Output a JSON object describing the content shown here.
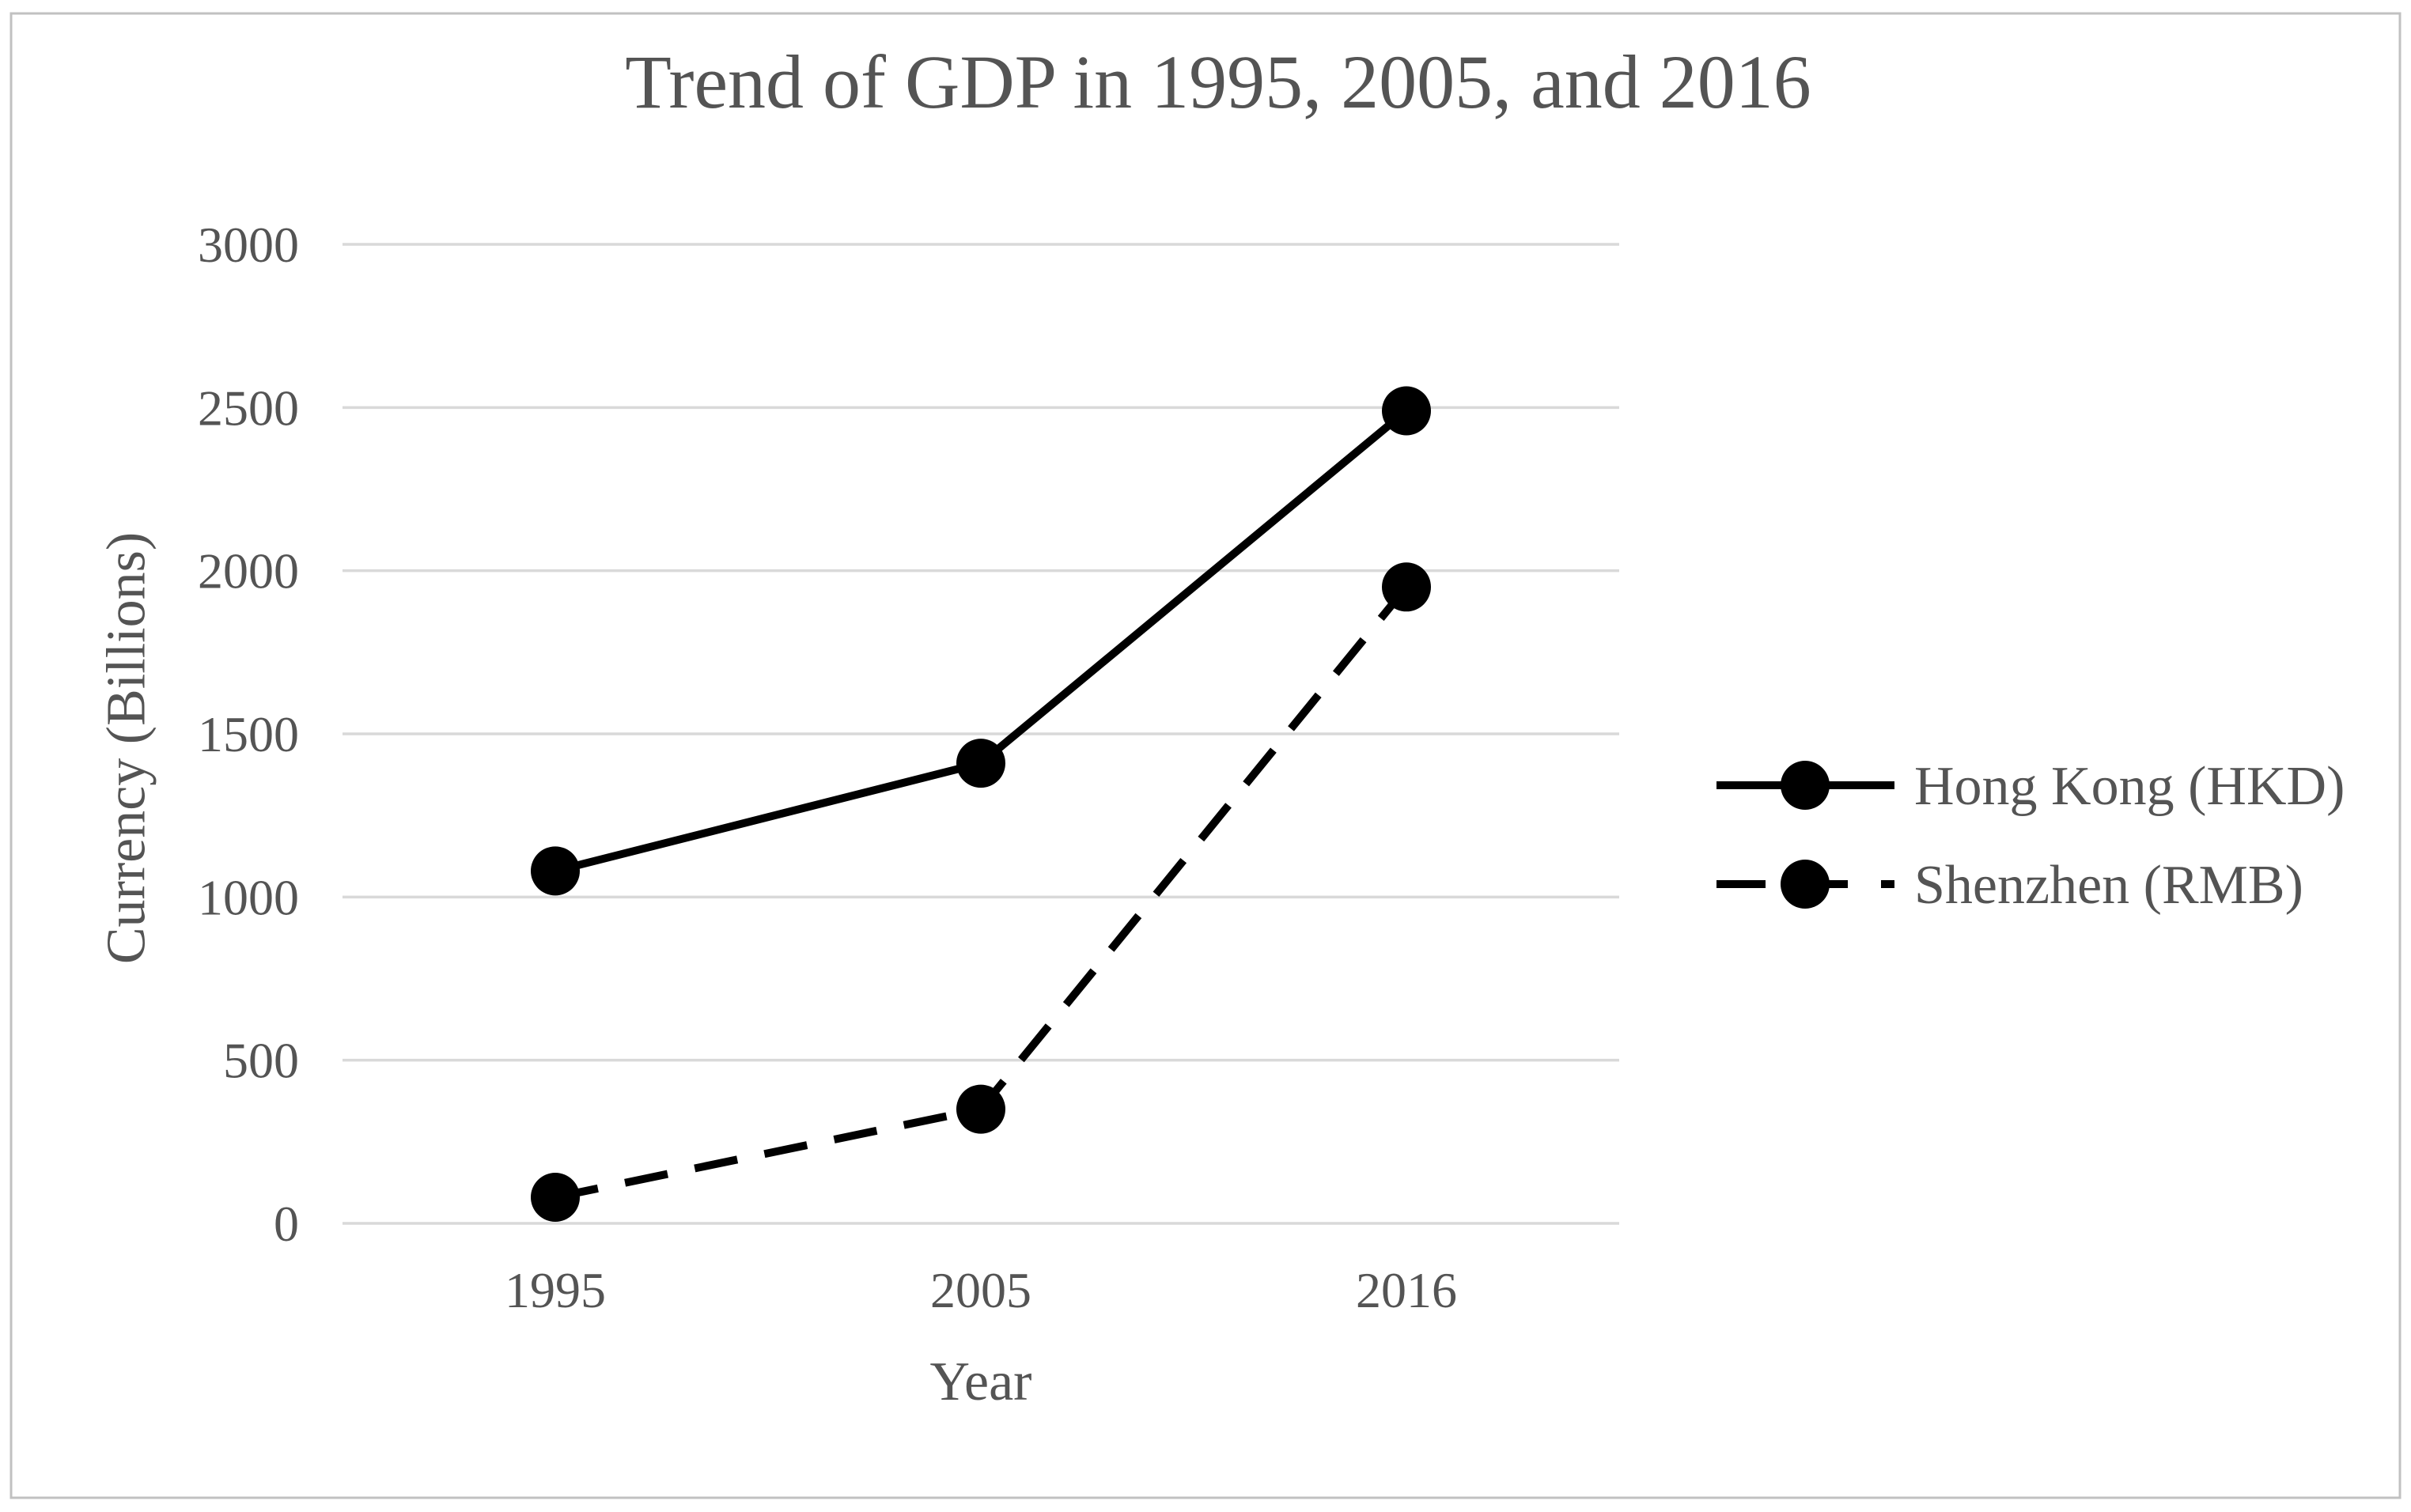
{
  "window": {
    "background": "#ffffff",
    "frame_border_color": "#c1c1c1"
  },
  "chart_data": {
    "type": "line",
    "title": "Trend of GDP in 1995, 2005, and 2016",
    "xlabel": "Year",
    "ylabel": "Currency (Billions)",
    "categories": [
      "1995",
      "2005",
      "2016"
    ],
    "series": [
      {
        "name": "Hong Kong (HKD)",
        "line_style": "solid",
        "marker": "circle",
        "color": "#000000",
        "values": [
          1080,
          1410,
          2490
        ]
      },
      {
        "name": "Shenzhen (RMB)",
        "line_style": "dashed",
        "marker": "circle",
        "color": "#000000",
        "values": [
          80,
          350,
          1950
        ]
      }
    ],
    "ylim": [
      0,
      3000
    ],
    "ytick_interval": 500,
    "yticks": [
      0,
      500,
      1000,
      1500,
      2000,
      2500,
      3000
    ],
    "grid": true,
    "legend_position": "right",
    "text_color": "#545454",
    "grid_color": "#d9d9d9",
    "series_color": "#000000"
  }
}
